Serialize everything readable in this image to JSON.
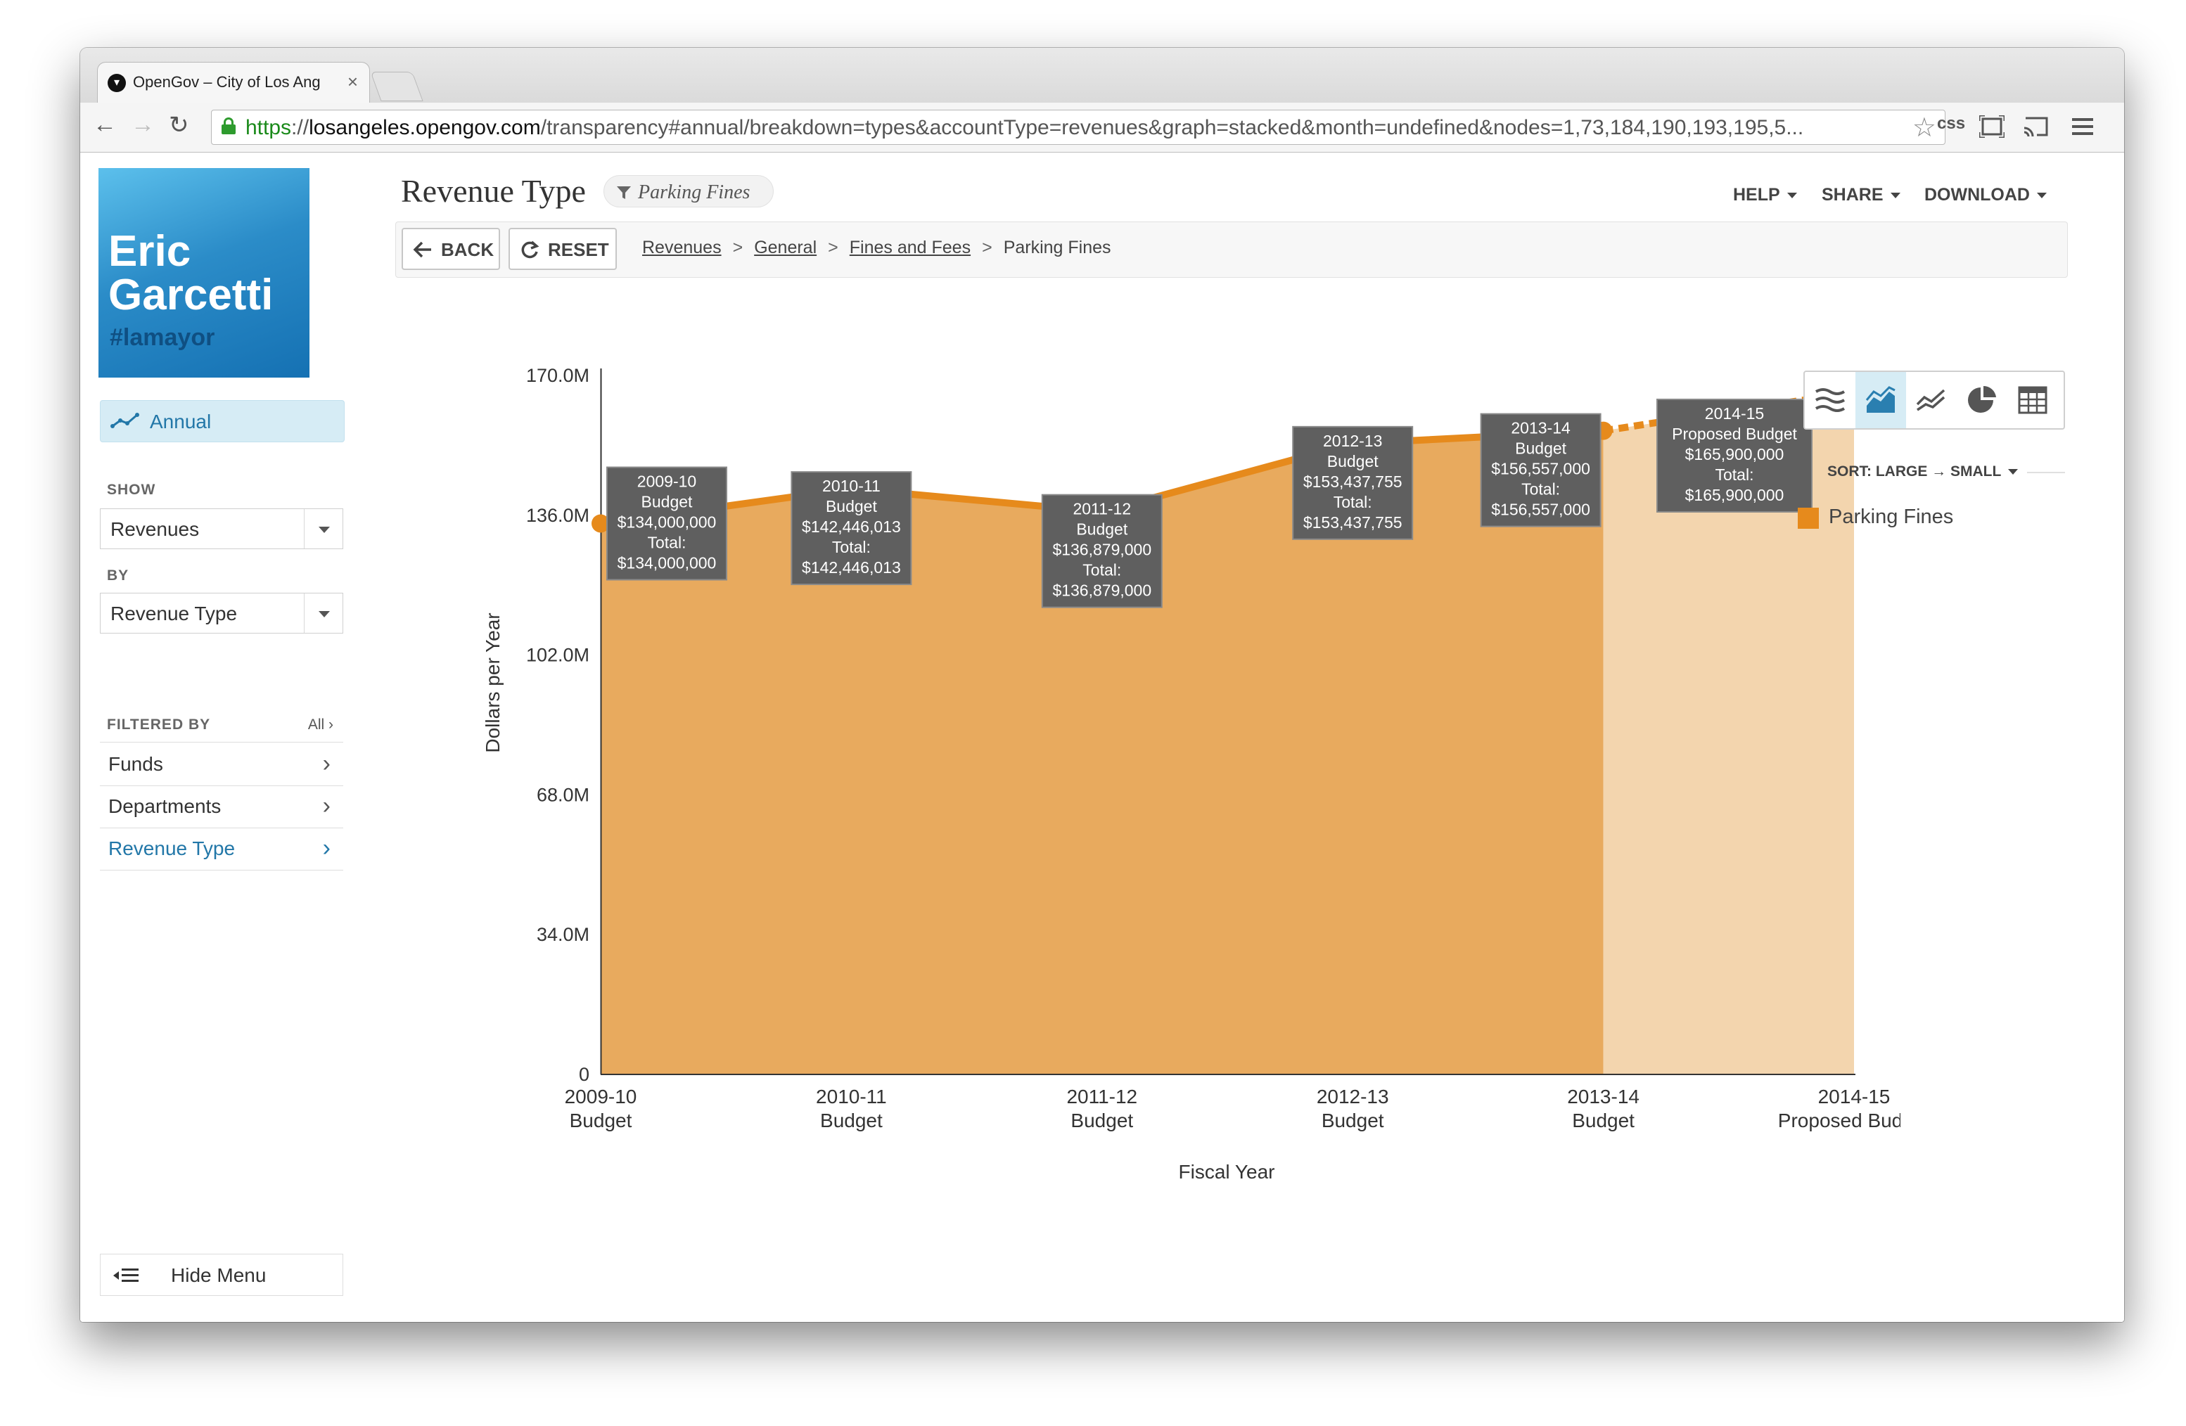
{
  "browser": {
    "tab_title": "OpenGov – City of Los Ang",
    "tab_close": "×",
    "url_https": "https",
    "url_sep": "://",
    "url_host": "losangeles.opengov.com",
    "url_path": "/transparency#annual/breakdown=types&accountType=revenues&graph=stacked&month=undefined&nodes=1,73,184,190,193,195,5...",
    "ext_label": "css"
  },
  "logo": {
    "name_line1": "Eric",
    "name_line2": "Garcetti",
    "tag": "#lamayor"
  },
  "sidebar": {
    "annual_label": "Annual",
    "show_label": "SHOW",
    "show_value": "Revenues",
    "by_label": "BY",
    "by_value": "Revenue Type",
    "filtered_by_label": "FILTERED BY",
    "filtered_all": "All",
    "filters": [
      {
        "label": "Funds"
      },
      {
        "label": "Departments"
      },
      {
        "label": "Revenue Type"
      }
    ],
    "hide_menu": "Hide Menu"
  },
  "header": {
    "title": "Revenue Type",
    "filter_chip": "Parking Fines",
    "menus": [
      "HELP",
      "SHARE",
      "DOWNLOAD"
    ],
    "back_label": "BACK",
    "reset_label": "RESET",
    "breadcrumbs": [
      "Revenues",
      "General",
      "Fines and Fees",
      "Parking Fines"
    ]
  },
  "view_icons": [
    "stacked-area-icon",
    "area-icon",
    "line-icon",
    "pie-icon",
    "table-icon"
  ],
  "sort_label": "SORT: LARGE → SMALL",
  "colors": {
    "series": "#e68a1c",
    "area": "#e8aa5e",
    "projected_area": "#f3d5ae",
    "tooltip": "#5f5f5f",
    "accent": "#2277a8"
  },
  "chart_data": {
    "type": "area",
    "xlabel": "Fiscal Year",
    "ylabel": "Dollars per Year",
    "ylim": [
      0,
      170000000
    ],
    "yticks": [
      "0",
      "34.0M",
      "68.0M",
      "102.0M",
      "136.0M",
      "170.0M"
    ],
    "categories": [
      {
        "year": "2009-10",
        "type": "Budget"
      },
      {
        "year": "2010-11",
        "type": "Budget"
      },
      {
        "year": "2011-12",
        "type": "Budget"
      },
      {
        "year": "2012-13",
        "type": "Budget"
      },
      {
        "year": "2013-14",
        "type": "Budget"
      },
      {
        "year": "2014-15",
        "type": "Proposed Budget"
      }
    ],
    "series": [
      {
        "name": "Parking Fines",
        "values": [
          134000000,
          142446013,
          136879000,
          153437755,
          156557000,
          165900000
        ]
      }
    ],
    "projected_from_index": 5,
    "tooltips": [
      {
        "lines": [
          "2009-10",
          "Budget",
          "$134,000,000",
          "Total:",
          "$134,000,000"
        ]
      },
      {
        "lines": [
          "2010-11",
          "Budget",
          "$142,446,013",
          "Total:",
          "$142,446,013"
        ]
      },
      {
        "lines": [
          "2011-12",
          "Budget",
          "$136,879,000",
          "Total:",
          "$136,879,000"
        ]
      },
      {
        "lines": [
          "2012-13",
          "Budget",
          "$153,437,755",
          "Total:",
          "$153,437,755"
        ]
      },
      {
        "lines": [
          "2013-14",
          "Budget",
          "$156,557,000",
          "Total:",
          "$156,557,000"
        ]
      },
      {
        "lines": [
          "2014-15",
          "Proposed Budget",
          "$165,900,000",
          "Total:",
          "$165,900,000"
        ]
      }
    ]
  }
}
